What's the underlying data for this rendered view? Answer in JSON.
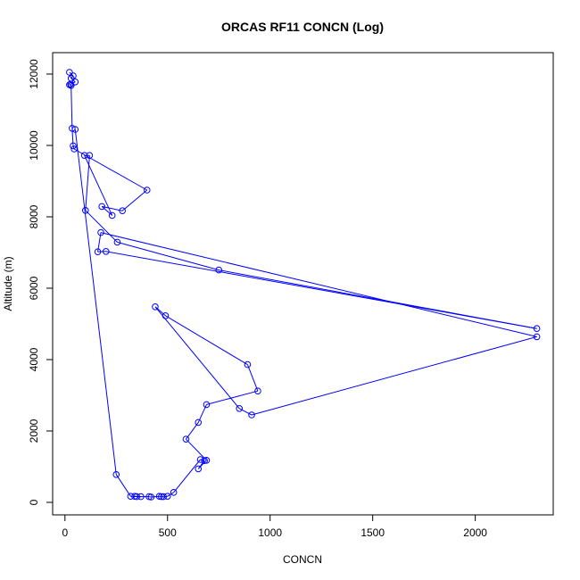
{
  "chart_data": {
    "type": "line",
    "title": "ORCAS RF11 CONCN (Log)",
    "xlabel": "CONCN",
    "ylabel": "Altitude (m)",
    "xlim": [
      -60,
      2380
    ],
    "ylim": [
      -350,
      12600
    ],
    "xticks": [
      0,
      500,
      1000,
      1500,
      2000
    ],
    "yticks": [
      0,
      2000,
      4000,
      6000,
      8000,
      10000,
      12000
    ],
    "grid": false,
    "series_color": "#0000ff",
    "series": [
      {
        "marker": "open-circle",
        "points": [
          [
            22,
            12050
          ],
          [
            40,
            11950
          ],
          [
            30,
            11880
          ],
          [
            50,
            11780
          ],
          [
            28,
            11720
          ],
          [
            22,
            11700
          ],
          [
            30,
            11680
          ],
          [
            35,
            10480
          ],
          [
            40,
            9990
          ],
          [
            45,
            9900
          ],
          [
            400,
            8750
          ],
          [
            280,
            8170
          ],
          [
            180,
            8290
          ],
          [
            230,
            8040
          ],
          [
            95,
            9720
          ],
          [
            120,
            9720
          ],
          [
            100,
            8180
          ],
          [
            255,
            7290
          ],
          [
            750,
            6510
          ],
          [
            2300,
            4870
          ],
          [
            200,
            7030
          ],
          [
            160,
            7020
          ],
          [
            175,
            7560
          ],
          [
            2300,
            4640
          ],
          [
            910,
            2450
          ],
          [
            850,
            2630
          ],
          [
            440,
            5480
          ],
          [
            490,
            5230
          ],
          [
            890,
            3860
          ],
          [
            940,
            3120
          ],
          [
            690,
            2740
          ],
          [
            650,
            2240
          ],
          [
            590,
            1770
          ],
          [
            690,
            1180
          ],
          [
            650,
            940
          ],
          [
            680,
            1170
          ],
          [
            660,
            1200
          ],
          [
            530,
            280
          ],
          [
            500,
            170
          ],
          [
            480,
            160
          ],
          [
            470,
            160
          ],
          [
            460,
            170
          ],
          [
            420,
            150
          ],
          [
            410,
            160
          ],
          [
            350,
            160
          ],
          [
            340,
            170
          ],
          [
            370,
            160
          ],
          [
            320,
            170
          ],
          [
            250,
            780
          ],
          [
            50,
            10450
          ]
        ]
      }
    ]
  }
}
